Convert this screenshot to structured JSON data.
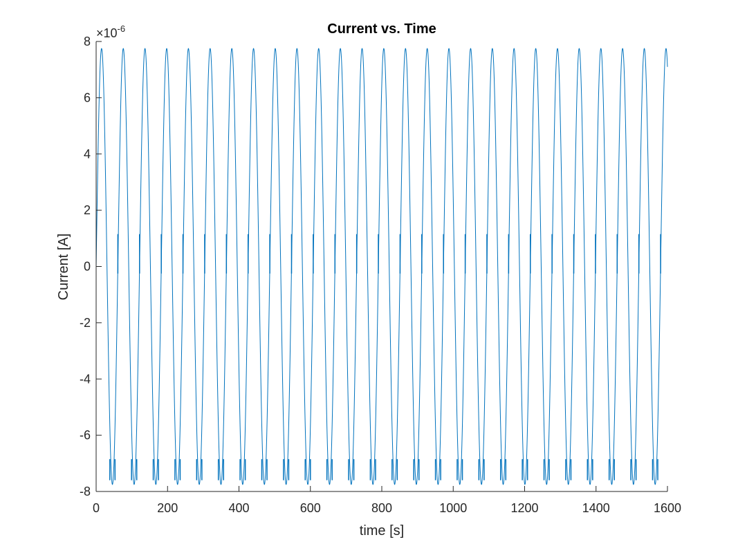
{
  "chart_data": {
    "type": "line",
    "title": "Current vs. Time",
    "xlabel": "time [s]",
    "ylabel": "Current [A]",
    "xlim": [
      0,
      1600
    ],
    "ylim": [
      -8,
      8
    ],
    "x_ticks": [
      0,
      200,
      400,
      600,
      800,
      1000,
      1200,
      1400,
      1600
    ],
    "y_ticks": [
      -8,
      -6,
      -4,
      -2,
      0,
      2,
      4,
      6,
      8
    ],
    "y_exponent": "×10^-6",
    "y_exponent_base": "×10",
    "y_exponent_power": "-6",
    "grid": false,
    "series": [
      {
        "color": "#0072BD",
        "waveform": "sine",
        "amplitude": 7.75,
        "period_s": 60.8,
        "x_start": 0,
        "x_end": 1600,
        "notch_values": [
          1.15,
          -0.25
        ],
        "trough_notch_values": [
          -6.85,
          -7.6
        ]
      }
    ]
  }
}
